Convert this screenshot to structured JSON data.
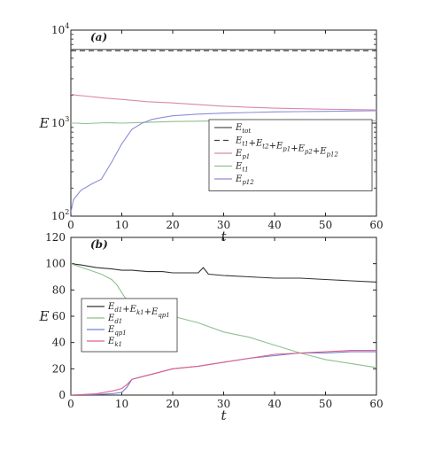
{
  "chart_data": [
    {
      "type": "line",
      "panel_label": "(a)",
      "xlabel": "t",
      "ylabel": "E",
      "xlim": [
        0,
        60
      ],
      "ylim": [
        100,
        10000
      ],
      "yscale": "log",
      "x_ticks": [
        "0",
        "10",
        "20",
        "30",
        "40",
        "50",
        "60"
      ],
      "y_ticks": [
        {
          "base": "10",
          "exp": "2",
          "value": 100
        },
        {
          "base": "10",
          "exp": "3",
          "value": 1000
        },
        {
          "base": "10",
          "exp": "4",
          "value": 10000
        }
      ],
      "grid": false,
      "legend_position": "bottom-right",
      "series": [
        {
          "name_base": "E",
          "name_sub": "tot",
          "color": "#555555",
          "dash": "",
          "x": [
            0,
            60
          ],
          "y": [
            6200,
            6200
          ]
        },
        {
          "name_parts": [
            [
              "E",
              "t1"
            ],
            [
              "+E",
              "t2"
            ],
            [
              "+E",
              "p1"
            ],
            [
              "+E",
              "p2"
            ],
            [
              "+E",
              "p12"
            ]
          ],
          "color": "#444444",
          "dash": "6,4",
          "x": [
            0,
            60
          ],
          "y": [
            6000,
            6000
          ]
        },
        {
          "name_base": "E",
          "name_sub": "p1",
          "color": "#d98aa6",
          "dash": "",
          "x": [
            0,
            1,
            3,
            5,
            7,
            10,
            15,
            20,
            25,
            30,
            35,
            40,
            45,
            50,
            55,
            60
          ],
          "y": [
            2050,
            2000,
            1950,
            1900,
            1850,
            1800,
            1700,
            1650,
            1580,
            1520,
            1480,
            1450,
            1430,
            1410,
            1400,
            1390
          ]
        },
        {
          "name_base": "E",
          "name_sub": "t1",
          "color": "#8fbf8f",
          "dash": "",
          "x": [
            0,
            1,
            3,
            5,
            7,
            10,
            15,
            20,
            25,
            30,
            35,
            40,
            45,
            50,
            55,
            60
          ],
          "y": [
            1000,
            1000,
            990,
            1000,
            1010,
            1000,
            1020,
            1040,
            1050,
            1060,
            1050,
            1070,
            1060,
            1050,
            1070,
            1060
          ]
        },
        {
          "name_base": "E",
          "name_sub": "p12",
          "color": "#8c8cd9",
          "dash": "",
          "x": [
            0,
            0.5,
            2,
            4,
            6,
            8,
            10,
            12,
            14,
            16,
            18,
            20,
            22,
            25,
            30,
            35,
            40,
            45,
            50,
            55,
            60
          ],
          "y": [
            110,
            150,
            190,
            220,
            250,
            380,
            600,
            860,
            1000,
            1100,
            1150,
            1200,
            1220,
            1250,
            1280,
            1300,
            1320,
            1330,
            1340,
            1350,
            1360
          ]
        }
      ]
    },
    {
      "type": "line",
      "panel_label": "(b)",
      "xlabel": "t",
      "ylabel": "E",
      "xlim": [
        0,
        60
      ],
      "ylim": [
        0,
        120
      ],
      "x_ticks": [
        "0",
        "10",
        "20",
        "30",
        "40",
        "50",
        "60"
      ],
      "y_ticks": [
        "0",
        "20",
        "40",
        "60",
        "80",
        "100",
        "120"
      ],
      "grid": false,
      "legend_position": "center-left",
      "series": [
        {
          "name_parts": [
            [
              "E",
              "d1"
            ],
            [
              "+E",
              "k1"
            ],
            [
              "+E",
              "qp1"
            ]
          ],
          "color": "#333333",
          "x": [
            0,
            2,
            5,
            8,
            10,
            12,
            15,
            18,
            20,
            25,
            26,
            27,
            30,
            35,
            40,
            45,
            50,
            55,
            60
          ],
          "y": [
            100,
            99,
            97,
            96,
            95,
            95,
            94,
            94,
            93,
            93,
            97,
            92,
            91,
            90,
            89,
            89,
            88,
            87,
            86
          ]
        },
        {
          "name_base": "E",
          "name_sub": "d1",
          "color": "#8fbf8f",
          "x": [
            0,
            3,
            6,
            8,
            9,
            10,
            11,
            12,
            14,
            17,
            20,
            25,
            30,
            35,
            40,
            45,
            50,
            55,
            60
          ],
          "y": [
            100,
            96,
            92,
            88,
            84,
            78,
            72,
            70,
            68,
            64,
            60,
            55,
            48,
            44,
            38,
            32,
            27,
            24,
            21
          ]
        },
        {
          "name_base": "E",
          "name_sub": "qp1",
          "color": "#6f7fd9",
          "x": [
            0,
            5,
            8,
            10,
            11,
            12,
            14,
            16,
            18,
            20,
            25,
            30,
            35,
            40,
            45,
            50,
            55,
            60
          ],
          "y": [
            0,
            0.5,
            1,
            2,
            6,
            12,
            14,
            16,
            18,
            20,
            22,
            25,
            28,
            30,
            32,
            32,
            33,
            33
          ]
        },
        {
          "name_base": "E",
          "name_sub": "k1",
          "color": "#e0608a",
          "x": [
            0,
            5,
            8,
            10,
            11,
            12,
            14,
            16,
            18,
            20,
            25,
            30,
            35,
            40,
            45,
            50,
            55,
            60
          ],
          "y": [
            0,
            1,
            3,
            5,
            8,
            12,
            14,
            16,
            18,
            20,
            22,
            25,
            28,
            31,
            32,
            33,
            34,
            34
          ]
        }
      ]
    }
  ]
}
